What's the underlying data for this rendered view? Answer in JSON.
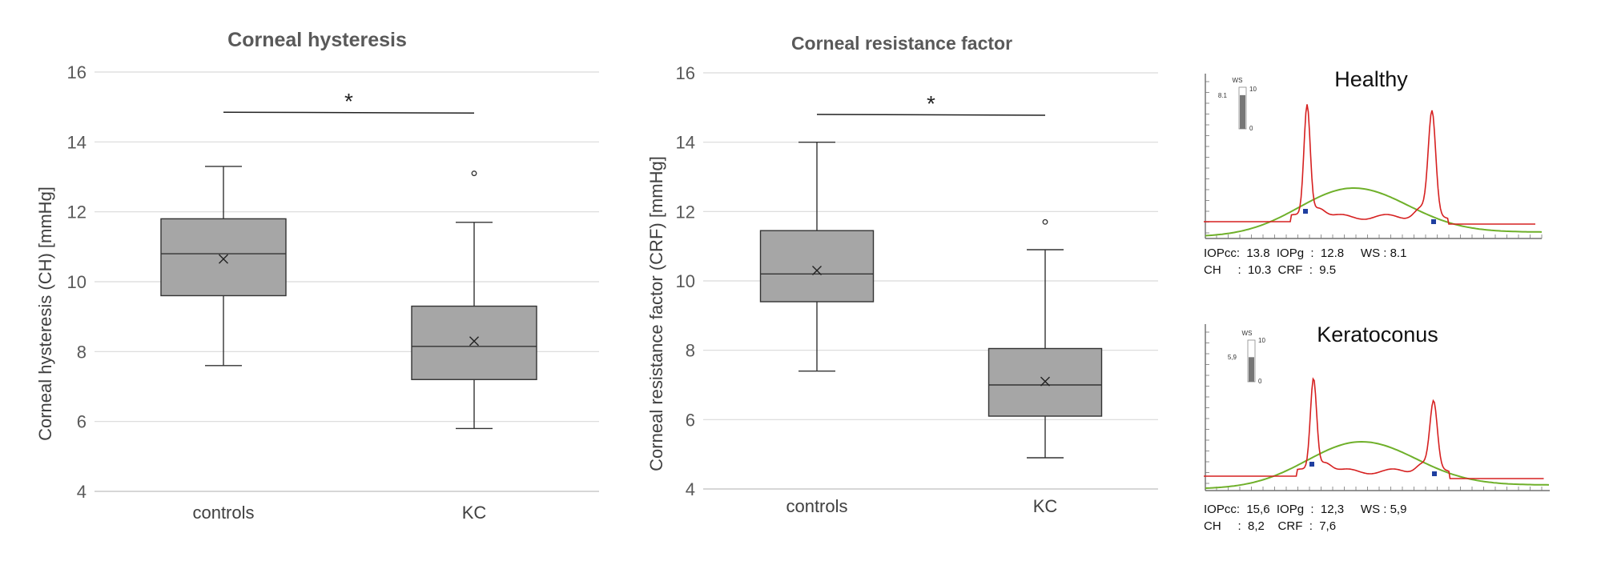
{
  "chart_data": [
    {
      "type": "box",
      "title": "Corneal hysteresis",
      "ylabel": "Corneal hysteresis (CH) [mmHg]",
      "ylim": [
        4,
        16
      ],
      "yticks": [
        4,
        6,
        8,
        10,
        12,
        14,
        16
      ],
      "grid": true,
      "categories": [
        "controls",
        "KC"
      ],
      "boxes": [
        {
          "min": 7.6,
          "q1": 9.6,
          "median": 10.8,
          "q3": 11.8,
          "max": 13.3,
          "mean": 10.65,
          "outliers": []
        },
        {
          "min": 5.8,
          "q1": 7.2,
          "median": 8.15,
          "q3": 9.3,
          "max": 11.7,
          "mean": 8.3,
          "outliers": [
            13.1
          ]
        }
      ],
      "significance": {
        "label": "*",
        "y": 14.85
      }
    },
    {
      "type": "box",
      "title": "Corneal resistance factor",
      "ylabel": "Corneal resistance factor (CRF) [mmHg]",
      "ylim": [
        4,
        16
      ],
      "yticks": [
        4,
        6,
        8,
        10,
        12,
        14,
        16
      ],
      "grid": true,
      "categories": [
        "controls",
        "KC"
      ],
      "boxes": [
        {
          "min": 7.4,
          "q1": 9.4,
          "median": 10.2,
          "q3": 11.45,
          "max": 14.0,
          "mean": 10.3,
          "outliers": []
        },
        {
          "min": 4.9,
          "q1": 6.1,
          "median": 7.0,
          "q3": 8.05,
          "max": 10.9,
          "mean": 7.1,
          "outliers": [
            11.7
          ]
        }
      ],
      "significance": {
        "label": "*",
        "y": 14.8
      }
    },
    {
      "type": "line",
      "title": "Healthy",
      "series": [
        {
          "color": "#d62020"
        },
        {
          "color": "#6fb02a"
        }
      ],
      "ws_gauge": {
        "label": "WS",
        "value": "8.1",
        "max": "10",
        "min": "0",
        "fill": 0.81
      },
      "readout": {
        "line1": "IOPcc:  13.8  IOPg  :  12.8     WS : 8.1",
        "line2": "CH     :  10.3  CRF  :  9.5"
      }
    },
    {
      "type": "line",
      "title": "Keratoconus",
      "series": [
        {
          "color": "#d62020"
        },
        {
          "color": "#6fb02a"
        }
      ],
      "ws_gauge": {
        "label": "WS",
        "value": "5,9",
        "max": "10",
        "min": "0",
        "fill": 0.59
      },
      "readout": {
        "line1": "IOPcc:  15,6  IOPg  :  12,3     WS : 5,9",
        "line2": "CH     :  8,2    CRF  :  7,6"
      }
    }
  ],
  "colors": {
    "box_fill": "#a6a6a6",
    "box_stroke": "#333333",
    "grid": "#d9d9d9",
    "red": "#d62020",
    "green": "#6fb02a",
    "marker": "#1f3fa0"
  }
}
